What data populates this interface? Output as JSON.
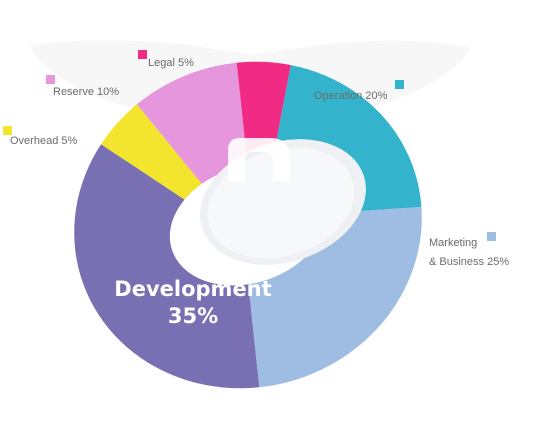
{
  "chart_data": {
    "type": "pie",
    "variant": "donut",
    "slices": [
      {
        "key": "development",
        "label_line1": "Development",
        "label_line2": "35%",
        "value": 35,
        "color": "#7870b3"
      },
      {
        "key": "overhead",
        "label_line1": "Overhead 5%",
        "value": 5,
        "color": "#f3e52e"
      },
      {
        "key": "reserve",
        "label_line1": "Reserve 10%",
        "value": 10,
        "color": "#e596dc"
      },
      {
        "key": "legal",
        "label_line1": "Legal 5%",
        "value": 5,
        "color": "#f12a84"
      },
      {
        "key": "operation",
        "label_line1": "Operation 20%",
        "value": 20,
        "color": "#33b3cc"
      },
      {
        "key": "marketing",
        "label_line1": "Marketing",
        "label_line2": "& Business 25%",
        "value": 25,
        "color": "#9fbce3"
      }
    ]
  }
}
